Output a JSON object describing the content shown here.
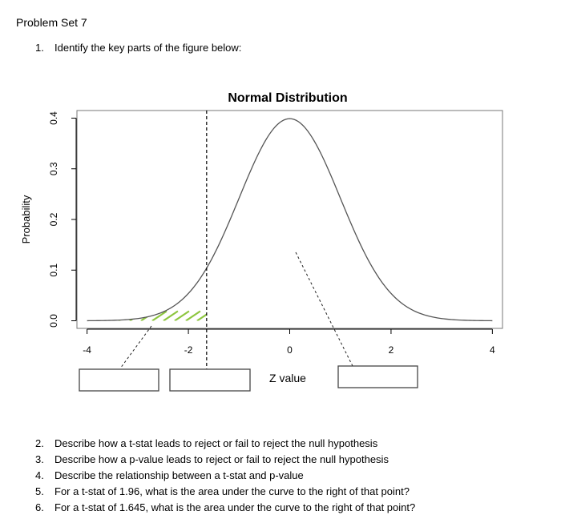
{
  "document": {
    "title": "Problem Set 7",
    "questions_top": [
      {
        "num": "1.",
        "text": "Identify the key parts of the figure below:"
      }
    ],
    "questions_bottom": [
      {
        "num": "2.",
        "text": "Describe how a t-stat leads to reject or fail to reject the null hypothesis"
      },
      {
        "num": "3.",
        "text": "Describe how a p-value leads to reject or fail to reject the null hypothesis"
      },
      {
        "num": "4.",
        "text": "Describe the relationship between a t-stat and p-value"
      },
      {
        "num": "5.",
        "text": "For a t-stat of 1.96, what is the area under the curve to the right of that point?"
      },
      {
        "num": "6.",
        "text": "For a t-stat of 1.645, what is the area under the curve to the right of that point?"
      }
    ]
  },
  "chart_data": {
    "type": "line",
    "title": "Normal Distribution",
    "xlabel": "Z value",
    "ylabel": "Probability",
    "xlim": [
      -4.2,
      4.2
    ],
    "ylim": [
      -0.015,
      0.415
    ],
    "xticks": [
      -4,
      -2,
      0,
      2,
      4
    ],
    "xtick_labels": [
      "-4",
      "-2",
      "0",
      "2",
      "4"
    ],
    "yticks": [
      0.0,
      0.1,
      0.2,
      0.3,
      0.4
    ],
    "ytick_labels": [
      "0.0",
      "0.1",
      "0.2",
      "0.3",
      "0.4"
    ],
    "series": [
      {
        "x": [
          -4,
          -3.5,
          -3,
          -2.5,
          -2,
          -1.5,
          -1,
          -0.5,
          0,
          0.5,
          1,
          1.5,
          2,
          2.5,
          3,
          3.5,
          4
        ],
        "y": [
          0.0001,
          0.0009,
          0.0044,
          0.0175,
          0.054,
          0.1295,
          0.242,
          0.3521,
          0.3989,
          0.3521,
          0.242,
          0.1295,
          0.054,
          0.0175,
          0.0044,
          0.0009,
          0.0001
        ],
        "color": "#555555"
      }
    ],
    "critical_line_x": -1.64,
    "shaded_region": {
      "from": -4,
      "to": -1.64,
      "color": "#8dc63f"
    },
    "answer_boxes": 3,
    "grid": false
  }
}
